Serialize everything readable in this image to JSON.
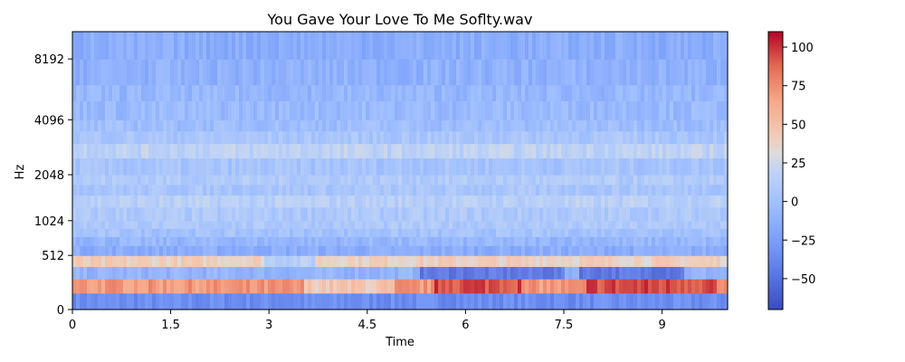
{
  "chart_data": {
    "type": "heatmap",
    "title": "You Gave Your Love To Me Soflty.wav",
    "xlabel": "Time",
    "ylabel": "Hz",
    "x_ticks": [
      "0",
      "1.5",
      "3",
      "4.5",
      "6",
      "7.5",
      "9"
    ],
    "x_tick_values": [
      0,
      1.5,
      3,
      4.5,
      6,
      7.5,
      9
    ],
    "xlim": [
      0,
      10.0
    ],
    "y_scale": "mel",
    "y_ticks": [
      "0",
      "512",
      "1024",
      "2048",
      "4096",
      "8192"
    ],
    "y_tick_values": [
      0,
      512,
      1024,
      2048,
      4096,
      8192
    ],
    "ylim": [
      0,
      11025
    ],
    "colormap": "coolwarm",
    "colorbar": {
      "range": [
        -70,
        110
      ],
      "ticks": [
        "100",
        "75",
        "50",
        "25",
        "0",
        "−25",
        "−50"
      ],
      "tick_values": [
        100,
        75,
        50,
        25,
        0,
        -25,
        -50
      ]
    },
    "band_level_summary": [
      {
        "band_top_hz": 128,
        "mean_db": -35
      },
      {
        "band_top_hz": 256,
        "mean_db": 85
      },
      {
        "band_top_hz": 384,
        "mean_db": -10
      },
      {
        "band_top_hz": 512,
        "mean_db": 40
      },
      {
        "band_top_hz": 640,
        "mean_db": -15
      },
      {
        "band_top_hz": 768,
        "mean_db": -8
      },
      {
        "band_top_hz": 896,
        "mean_db": 2
      },
      {
        "band_top_hz": 1024,
        "mean_db": 8
      },
      {
        "band_top_hz": 1280,
        "mean_db": 8
      },
      {
        "band_top_hz": 1536,
        "mean_db": 15
      },
      {
        "band_top_hz": 1792,
        "mean_db": 5
      },
      {
        "band_top_hz": 2048,
        "mean_db": 10
      },
      {
        "band_top_hz": 2560,
        "mean_db": 3
      },
      {
        "band_top_hz": 3072,
        "mean_db": 18
      },
      {
        "band_top_hz": 3584,
        "mean_db": 5
      },
      {
        "band_top_hz": 4096,
        "mean_db": -2
      },
      {
        "band_top_hz": 5120,
        "mean_db": -5
      },
      {
        "band_top_hz": 6144,
        "mean_db": -8
      },
      {
        "band_top_hz": 8192,
        "mean_db": -12
      },
      {
        "band_top_hz": 11025,
        "mean_db": -15
      }
    ]
  }
}
